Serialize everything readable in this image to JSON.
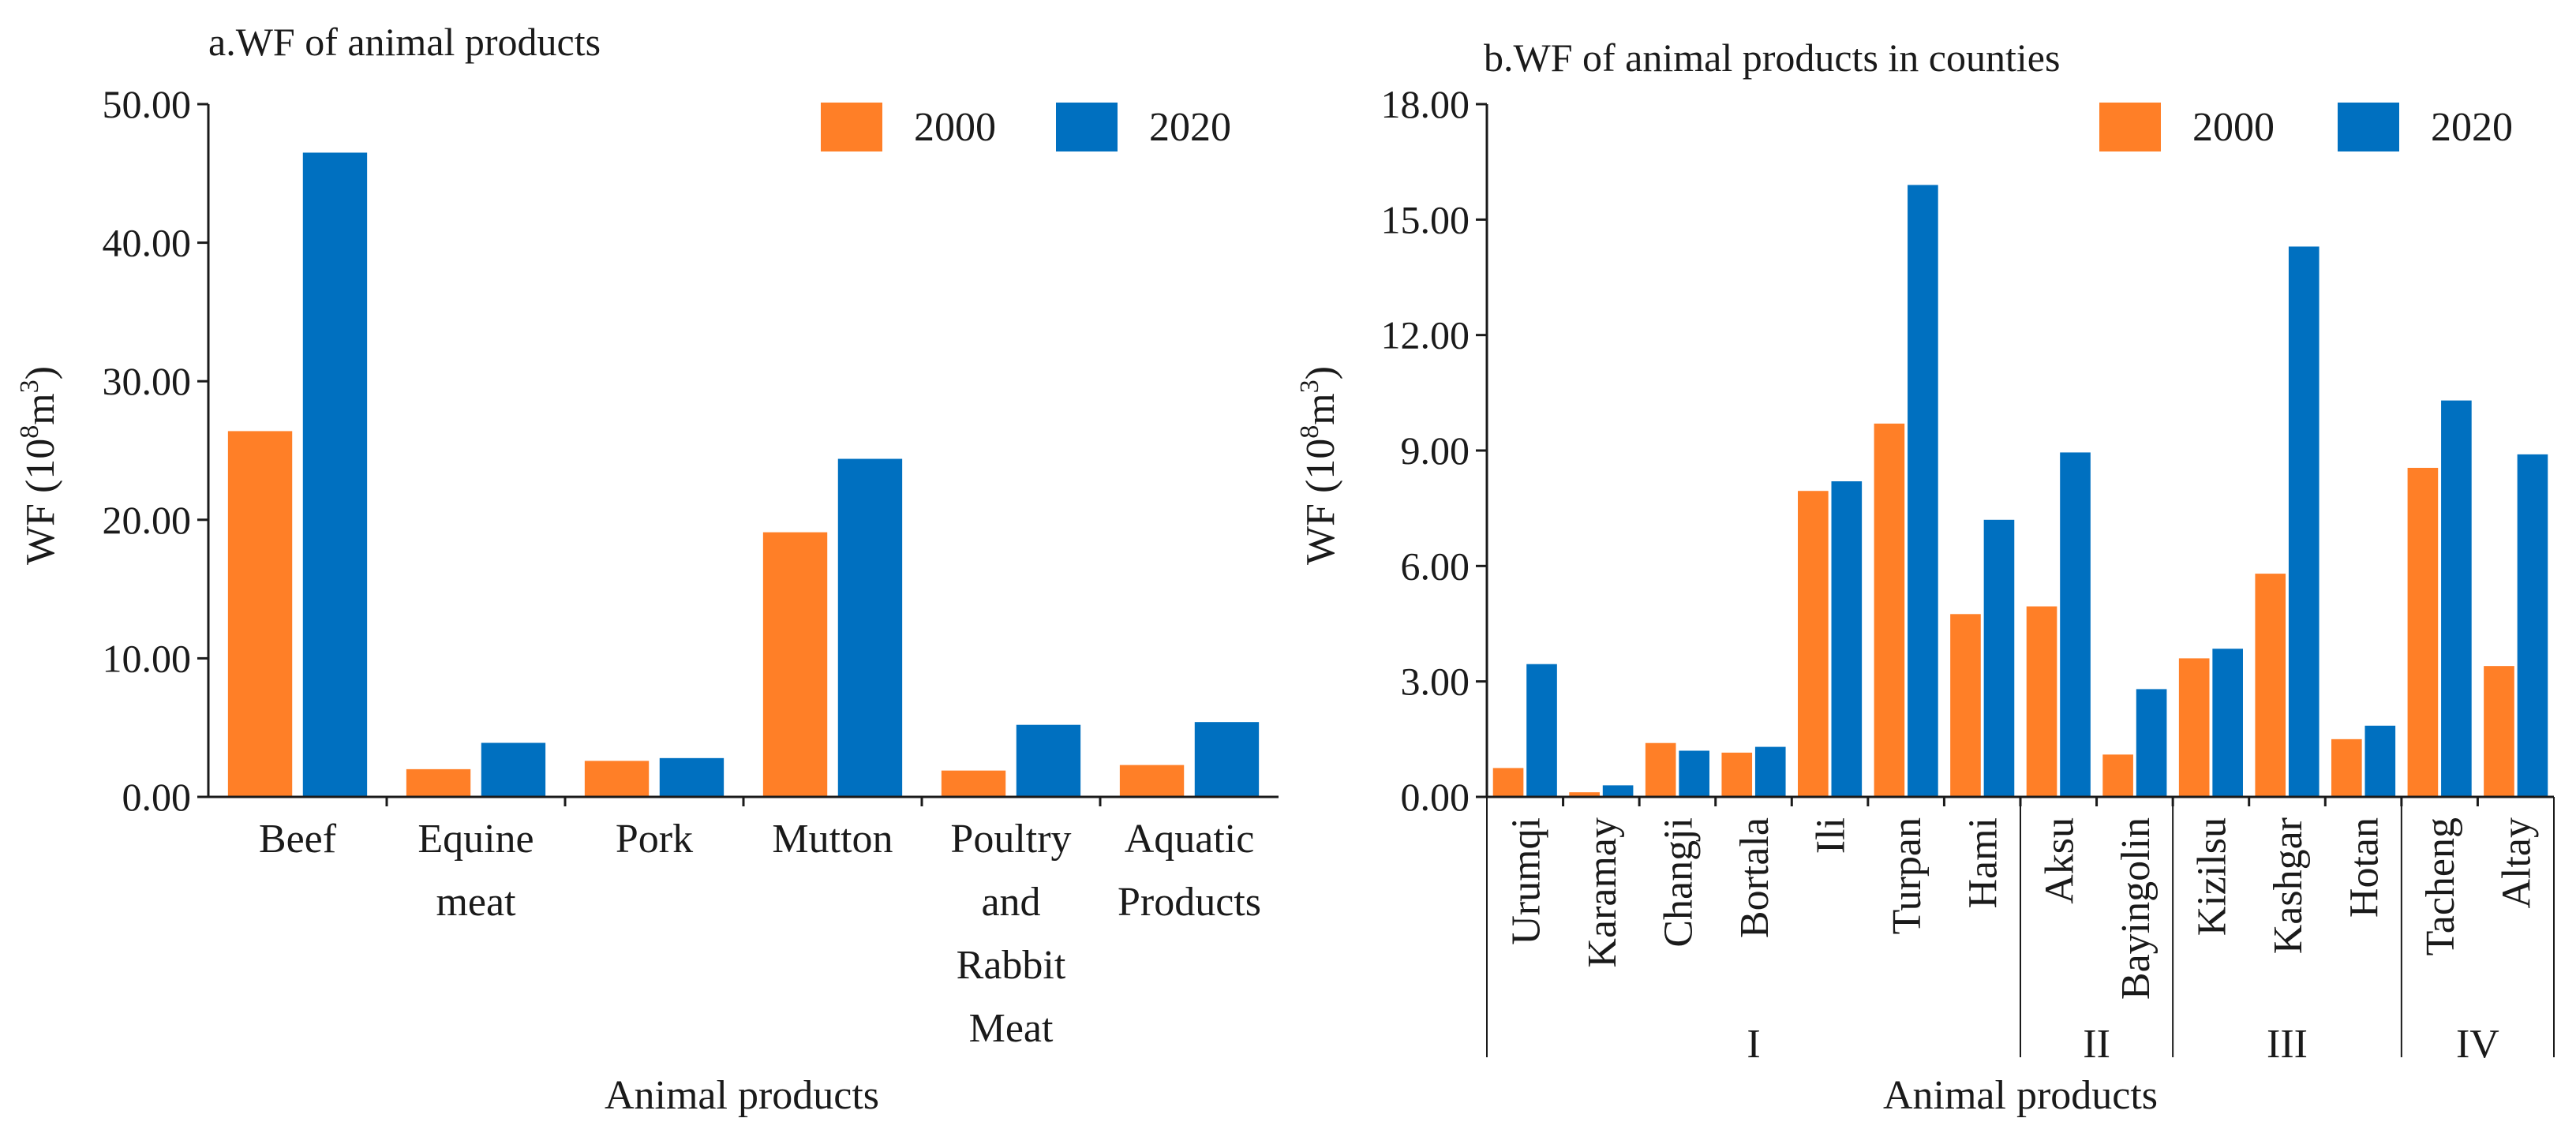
{
  "colors": {
    "s2000": "#FF7F27",
    "s2020": "#0070C0",
    "axis": "#1a1a1a"
  },
  "chart_data": [
    {
      "type": "bar",
      "title": "a.WF of animal products",
      "xlabel": "Animal products",
      "ylabel": "WF (10⁸m³)",
      "ylim": [
        0,
        50
      ],
      "yticks": [
        "0.00",
        "10.00",
        "20.00",
        "30.00",
        "40.00",
        "50.00"
      ],
      "legend_position": "top-right",
      "categories": [
        [
          "Beef"
        ],
        [
          "Equine",
          "meat"
        ],
        [
          "Pork"
        ],
        [
          "Mutton"
        ],
        [
          "Poultry",
          "and",
          "Rabbit",
          "Meat"
        ],
        [
          "Aquatic",
          "Products"
        ]
      ],
      "series": [
        {
          "name": "2000",
          "values": [
            26.4,
            2.0,
            2.6,
            19.1,
            1.9,
            2.3
          ]
        },
        {
          "name": "2020",
          "values": [
            46.5,
            3.9,
            2.8,
            24.4,
            5.2,
            5.4
          ]
        }
      ]
    },
    {
      "type": "bar",
      "title": "b.WF of animal products in counties",
      "xlabel": "Animal products",
      "ylabel": "WF (10⁸m³)",
      "ylim": [
        0,
        18
      ],
      "yticks": [
        "0.00",
        "3.00",
        "6.00",
        "9.00",
        "12.00",
        "15.00",
        "18.00"
      ],
      "legend_position": "top-right",
      "categories": [
        "Urumqi",
        "Karamay",
        "Changji",
        "Bortala",
        "Ili",
        "Turpan",
        "Hami",
        "Aksu",
        "Bayingolin",
        "Kizilsu",
        "Kashgar",
        "Hotan",
        "Tacheng",
        "Altay"
      ],
      "groups": [
        {
          "label": "I",
          "count": 7
        },
        {
          "label": "II",
          "count": 2
        },
        {
          "label": "III",
          "count": 3
        },
        {
          "label": "IV",
          "count": 2
        }
      ],
      "series": [
        {
          "name": "2000",
          "values": [
            0.75,
            0.12,
            1.4,
            1.15,
            7.95,
            9.7,
            4.75,
            4.95,
            1.1,
            3.6,
            5.8,
            1.5,
            8.55,
            3.4
          ]
        },
        {
          "name": "2020",
          "values": [
            3.45,
            0.3,
            1.2,
            1.3,
            8.2,
            15.9,
            7.2,
            8.95,
            2.8,
            3.85,
            14.3,
            1.85,
            10.3,
            8.9
          ]
        }
      ]
    }
  ]
}
